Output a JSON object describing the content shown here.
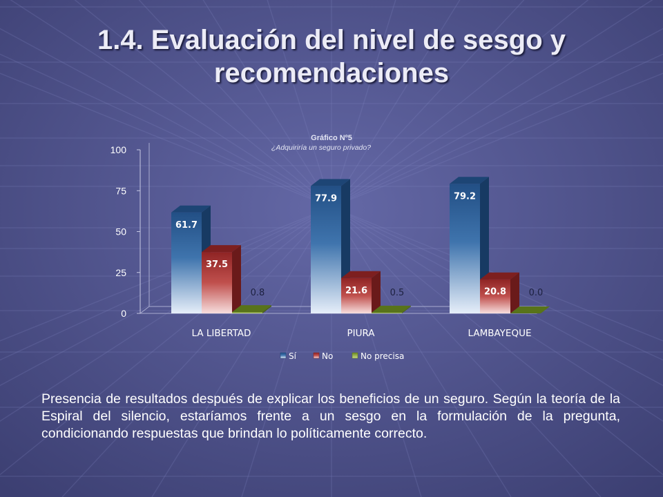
{
  "slide": {
    "title_line1": "1.4. Evaluación del nivel de sesgo y",
    "title_line2": "recomendaciones",
    "caption": "Presencia de resultados después de explicar los beneficios de un seguro. Según la teoría de la Espiral del silencio, estaríamos frente a un sesgo en la formulación de la pregunta, condicionando respuestas que brindan lo políticamente correcto."
  },
  "chart_data": {
    "type": "bar",
    "title": "Gráfico Nº5",
    "subtitle": "¿Adquiriría un seguro privado?",
    "categories": [
      "LA LIBERTAD",
      "PIURA",
      "LAMBAYEQUE"
    ],
    "series": [
      {
        "name": "Sí",
        "values": [
          61.7,
          77.9,
          79.2
        ],
        "color": "#2d5a8c"
      },
      {
        "name": "No",
        "values": [
          37.5,
          21.6,
          20.8
        ],
        "color": "#9c2b2b"
      },
      {
        "name": "No precisa",
        "values": [
          0.8,
          0.5,
          0.0
        ],
        "color": "#6b8a1f"
      }
    ],
    "value_labels": [
      [
        "61.7",
        "37.5",
        "0.8"
      ],
      [
        "77.9",
        "21.6",
        "0.5"
      ],
      [
        "79.2",
        "20.8",
        "0.0"
      ]
    ],
    "yticks": [
      "0",
      "25",
      "50",
      "75",
      "100"
    ],
    "ylim": [
      0,
      100
    ],
    "three_d": true,
    "legend_position": "bottom"
  }
}
